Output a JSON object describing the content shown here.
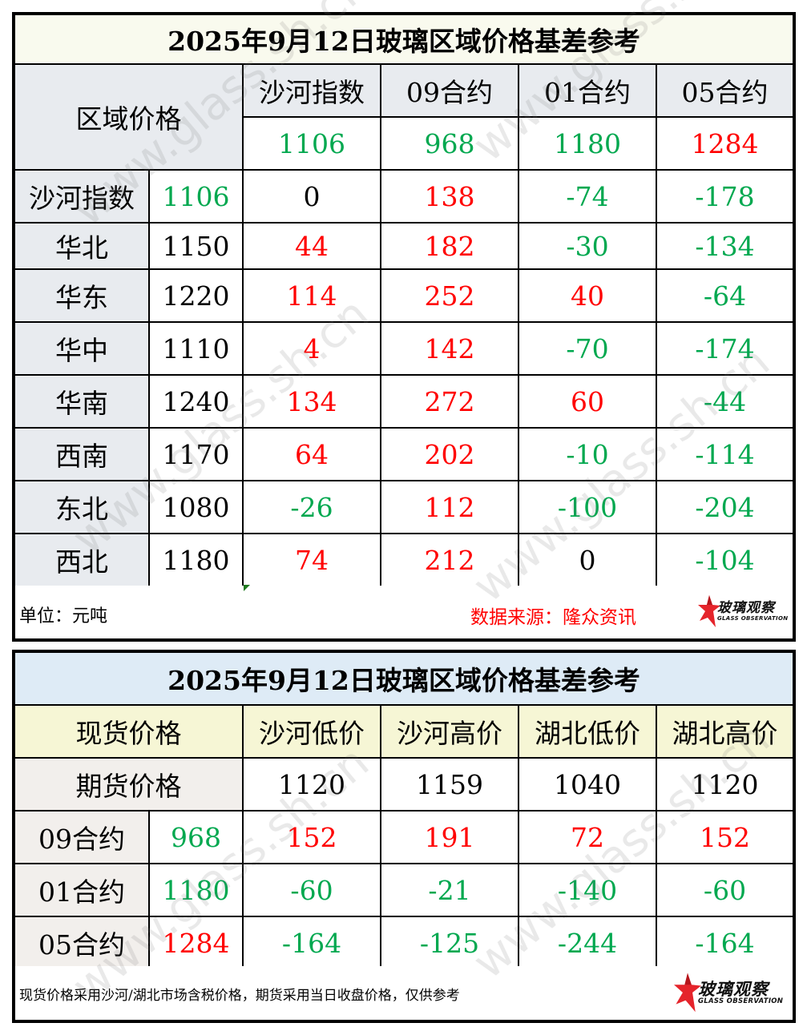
{
  "table1": {
    "title": "2025年9月12日玻璃区域价格基差参考",
    "corner_label": "区域价格",
    "columns": [
      {
        "label": "沙河指数",
        "value": "1106",
        "color": "green"
      },
      {
        "label": "09合约",
        "value": "968",
        "color": "green"
      },
      {
        "label": "01合约",
        "value": "1180",
        "color": "green"
      },
      {
        "label": "05合约",
        "value": "1284",
        "color": "red"
      }
    ],
    "rows": [
      {
        "region": "沙河指数",
        "price": "1106",
        "price_color": "green",
        "basis": [
          {
            "v": "0",
            "c": "black"
          },
          {
            "v": "138",
            "c": "red"
          },
          {
            "v": "-74",
            "c": "green"
          },
          {
            "v": "-178",
            "c": "green"
          }
        ]
      },
      {
        "region": "华北",
        "price": "1150",
        "price_color": "black",
        "basis": [
          {
            "v": "44",
            "c": "red"
          },
          {
            "v": "182",
            "c": "red"
          },
          {
            "v": "-30",
            "c": "green"
          },
          {
            "v": "-134",
            "c": "green"
          }
        ]
      },
      {
        "region": "华东",
        "price": "1220",
        "price_color": "black",
        "basis": [
          {
            "v": "114",
            "c": "red"
          },
          {
            "v": "252",
            "c": "red"
          },
          {
            "v": "40",
            "c": "red"
          },
          {
            "v": "-64",
            "c": "green"
          }
        ]
      },
      {
        "region": "华中",
        "price": "1110",
        "price_color": "black",
        "basis": [
          {
            "v": "4",
            "c": "red"
          },
          {
            "v": "142",
            "c": "red"
          },
          {
            "v": "-70",
            "c": "green"
          },
          {
            "v": "-174",
            "c": "green"
          }
        ]
      },
      {
        "region": "华南",
        "price": "1240",
        "price_color": "black",
        "basis": [
          {
            "v": "134",
            "c": "red"
          },
          {
            "v": "272",
            "c": "red"
          },
          {
            "v": "60",
            "c": "red"
          },
          {
            "v": "-44",
            "c": "green"
          }
        ]
      },
      {
        "region": "西南",
        "price": "1170",
        "price_color": "black",
        "basis": [
          {
            "v": "64",
            "c": "red"
          },
          {
            "v": "202",
            "c": "red"
          },
          {
            "v": "-10",
            "c": "green"
          },
          {
            "v": "-114",
            "c": "green"
          }
        ]
      },
      {
        "region": "东北",
        "price": "1080",
        "price_color": "black",
        "basis": [
          {
            "v": "-26",
            "c": "green"
          },
          {
            "v": "112",
            "c": "red"
          },
          {
            "v": "-100",
            "c": "green"
          },
          {
            "v": "-204",
            "c": "green"
          }
        ]
      },
      {
        "region": "西北",
        "price": "1180",
        "price_color": "black",
        "basis": [
          {
            "v": "74",
            "c": "red"
          },
          {
            "v": "212",
            "c": "red"
          },
          {
            "v": "0",
            "c": "black"
          },
          {
            "v": "-104",
            "c": "green"
          }
        ]
      }
    ],
    "unit_note": "单位：元吨",
    "source_note": "数据来源：隆众资讯"
  },
  "table2": {
    "title": "2025年9月12日玻璃区域价格基差参考",
    "spot_label": "现货价格",
    "futures_label": "期货价格",
    "columns": [
      {
        "label": "沙河低价",
        "value": "1120"
      },
      {
        "label": "沙河高价",
        "value": "1159"
      },
      {
        "label": "湖北低价",
        "value": "1040"
      },
      {
        "label": "湖北高价",
        "value": "1120"
      }
    ],
    "rows": [
      {
        "contract": "09合约",
        "price": "968",
        "price_color": "green",
        "basis": [
          {
            "v": "152",
            "c": "red"
          },
          {
            "v": "191",
            "c": "red"
          },
          {
            "v": "72",
            "c": "red"
          },
          {
            "v": "152",
            "c": "red"
          }
        ]
      },
      {
        "contract": "01合约",
        "price": "1180",
        "price_color": "green",
        "basis": [
          {
            "v": "-60",
            "c": "green"
          },
          {
            "v": "-21",
            "c": "green"
          },
          {
            "v": "-140",
            "c": "green"
          },
          {
            "v": "-60",
            "c": "green"
          }
        ]
      },
      {
        "contract": "05合约",
        "price": "1284",
        "price_color": "red",
        "basis": [
          {
            "v": "-164",
            "c": "green"
          },
          {
            "v": "-125",
            "c": "green"
          },
          {
            "v": "-244",
            "c": "green"
          },
          {
            "v": "-164",
            "c": "green"
          }
        ]
      }
    ],
    "footnote": "现货价格采用沙河/湖北市场含税价格，期货采用当日收盘价格，仅供参考"
  },
  "logo": {
    "cn": "玻璃观察",
    "en": "GLASS OBSERVATION",
    "icon": "red-star-logo-icon"
  },
  "watermark": "www.glass.sh.cn",
  "colors": {
    "red": "#ff0000",
    "green": "#00a84f",
    "title1_bg": "#f9faee",
    "title2_bg": "#deebf6",
    "header_grey": "#e8ebef",
    "header_yellow": "#f6f6d5"
  }
}
